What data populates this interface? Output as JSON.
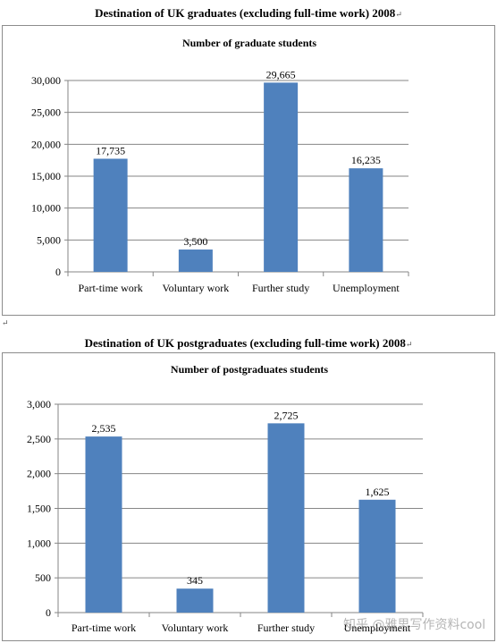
{
  "headings": {
    "graduates": "Destination of UK graduates (excluding full-time work) 2008",
    "postgraduates": "Destination of UK postgraduates (excluding full-time work) 2008",
    "para_mark": "↵"
  },
  "watermark": "知乎 @雅思写作资料cool",
  "colors": {
    "bar": "#4f81bd",
    "grid": "#868686",
    "axis": "#868686",
    "border": "#8c8c8c"
  },
  "chart_data": [
    {
      "type": "bar",
      "title": "Number of graduate students",
      "categories": [
        "Part-time work",
        "Voluntary work",
        "Further study",
        "Unemployment"
      ],
      "values": [
        17735,
        3500,
        29665,
        16235
      ],
      "data_labels": [
        "17,735",
        "3,500",
        "29,665",
        "16,235"
      ],
      "yticks": [
        "0",
        "5,000",
        "10,000",
        "15,000",
        "20,000",
        "25,000",
        "30,000"
      ],
      "ylim": [
        0,
        30000
      ],
      "ystep": 5000,
      "grid": true,
      "legend": "none"
    },
    {
      "type": "bar",
      "title": "Number of postgraduates students",
      "categories": [
        "Part-time work",
        "Voluntary work",
        "Further study",
        "Unemployment"
      ],
      "values": [
        2535,
        345,
        2725,
        1625
      ],
      "data_labels": [
        "2,535",
        "345",
        "2,725",
        "1,625"
      ],
      "yticks": [
        "0",
        "500",
        "1,000",
        "1,500",
        "2,000",
        "2,500",
        "3,000"
      ],
      "ylim": [
        0,
        3000
      ],
      "ystep": 500,
      "grid": true,
      "legend": "none"
    }
  ]
}
